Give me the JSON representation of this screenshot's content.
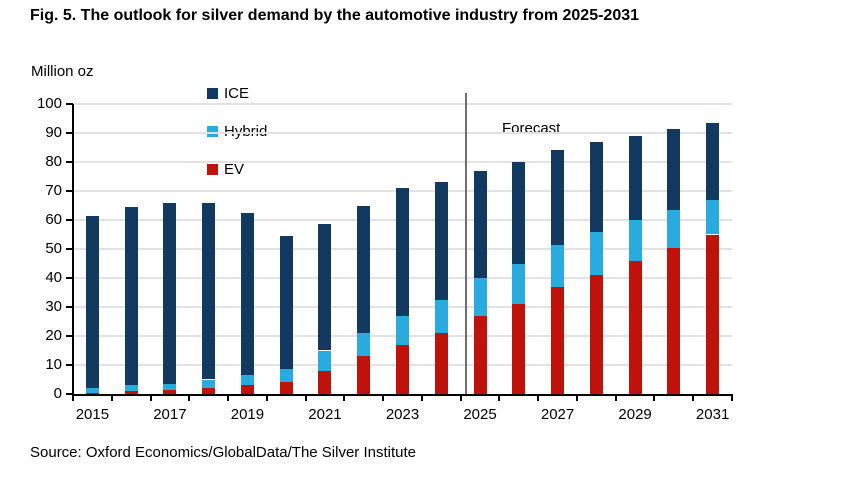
{
  "chart_data": {
    "type": "bar",
    "stacked": true,
    "title": "Fig. 5. The outlook for silver demand by the automotive industry from 2025-2031",
    "unit_label": "Million oz",
    "source": "Source: Oxford Economics/GlobalData/The Silver Institute",
    "categories": [
      2015,
      2016,
      2017,
      2018,
      2019,
      2020,
      2021,
      2022,
      2023,
      2024,
      2025,
      2026,
      2027,
      2028,
      2029,
      2030,
      2031
    ],
    "x_tick_labels": [
      "2015",
      "2017",
      "2019",
      "2021",
      "2023",
      "2025",
      "2027",
      "2029",
      "2031"
    ],
    "x_tick_label_every": 2,
    "series": [
      {
        "name": "EV",
        "color": "#bf120b",
        "values": [
          0.5,
          1,
          1.5,
          2,
          3,
          4,
          8,
          13,
          17,
          21,
          27,
          31,
          37,
          41,
          46,
          50.5,
          55
        ]
      },
      {
        "name": "Hybrid",
        "color": "#29abe0",
        "values": [
          1.5,
          2,
          2,
          3,
          3.5,
          4.5,
          7,
          8,
          10,
          11.5,
          13,
          14,
          14.5,
          15,
          14,
          13,
          12
        ]
      },
      {
        "name": "ICE",
        "color": "#123a60",
        "values": [
          59.5,
          61.5,
          62.5,
          61,
          56,
          46,
          43.5,
          44,
          44,
          40.5,
          37,
          35,
          32.5,
          31,
          29,
          28,
          26.5
        ]
      }
    ],
    "legend_order_top_to_bottom": [
      "ICE",
      "Hybrid",
      "EV"
    ],
    "ylim": [
      0,
      100
    ],
    "ytick_step": 10,
    "grid": true,
    "grid_color": "#e2e2e2",
    "axis_color": "#000000",
    "forecast": {
      "label": "Forecast",
      "starts_at_category": 2025,
      "line_color": "#707070"
    }
  }
}
